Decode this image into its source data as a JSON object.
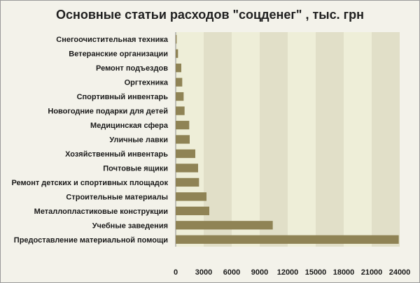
{
  "chart_data": {
    "type": "bar",
    "orientation": "horizontal",
    "title": "Основные статьи расходов \"соцденег\" , тыс. грн",
    "categories": [
      "Снегоочистительная техника",
      "Ветеранские организации",
      "Ремонт подъездов",
      "Оргтехника",
      "Спортивный инвентарь",
      "Новогодние подарки для детей",
      "Медицинская сфера",
      "Уличные лавки",
      "Хозяйственный инвентарь",
      "Почтовые ящики",
      "Ремонт детских и спортивных площадок",
      "Строительные материалы",
      "Металлопластиковые конструкции",
      "Учебные заведения",
      "Предоставление материальной помощи"
    ],
    "values": [
      100,
      250,
      600,
      700,
      850,
      950,
      1450,
      1500,
      2100,
      2400,
      2500,
      3300,
      3600,
      10400,
      23900
    ],
    "xlim": [
      0,
      24000
    ],
    "xticks": [
      0,
      3000,
      6000,
      9000,
      12000,
      15000,
      18000,
      21000,
      24000
    ],
    "xtick_labels": [
      "0",
      "3000",
      "6000",
      "9000",
      "12000",
      "15000",
      "18000",
      "21000",
      "24000"
    ],
    "grid": "vertical-bands",
    "colors": {
      "bar": "#8f8355",
      "plot_band_light": "#eeeed8",
      "plot_band_dark": "#e1dfc8",
      "background": "#f3f2ea"
    }
  }
}
